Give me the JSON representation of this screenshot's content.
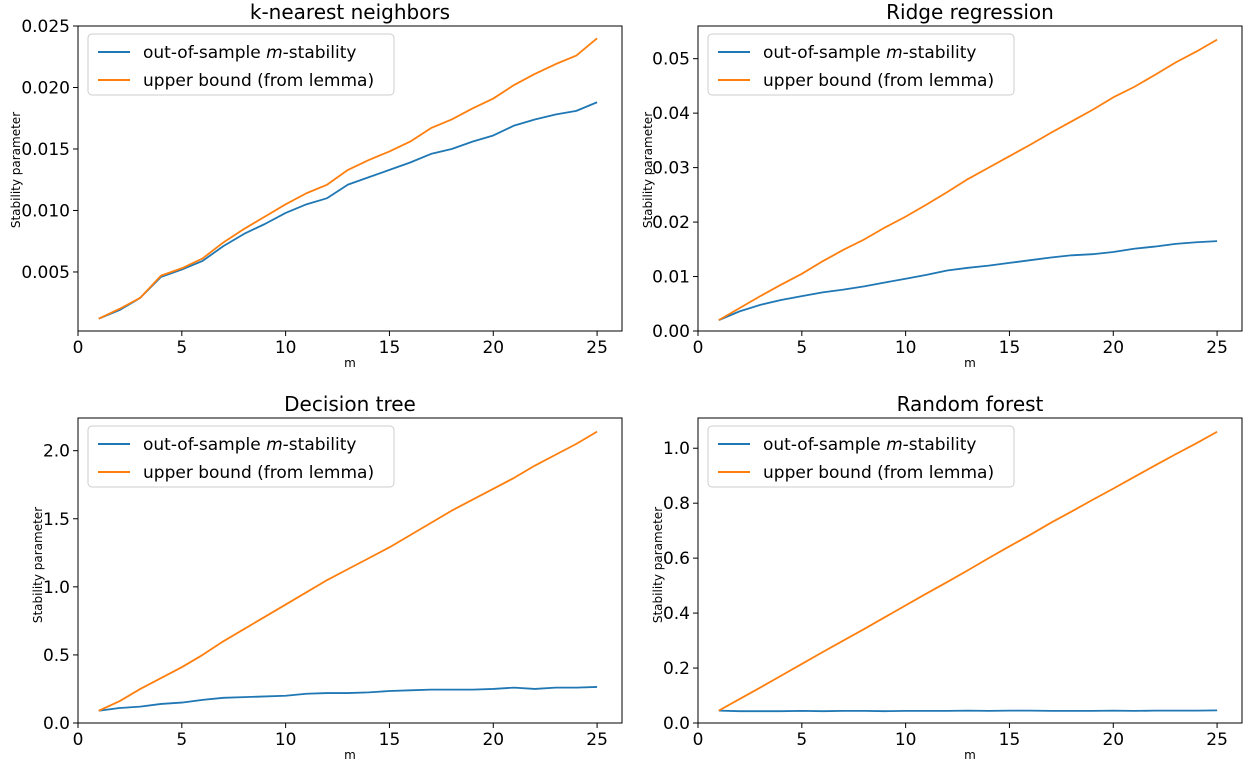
{
  "chart_data": [
    {
      "type": "line",
      "title": "k-nearest neighbors",
      "xlabel": "m",
      "ylabel": "Stability parameter",
      "xlim": [
        0,
        26.2
      ],
      "ylim": [
        0.0002,
        0.025
      ],
      "xticks": [
        0,
        5,
        10,
        15,
        20,
        25
      ],
      "yticks": [
        0.005,
        0.01,
        0.015,
        0.02,
        0.025
      ],
      "ytick_labels": [
        "0.005",
        "0.010",
        "0.015",
        "0.020",
        "0.025"
      ],
      "legend": "upper-left",
      "x": [
        1,
        2,
        3,
        4,
        5,
        6,
        7,
        8,
        9,
        10,
        11,
        12,
        13,
        14,
        15,
        16,
        17,
        18,
        19,
        20,
        21,
        22,
        23,
        24,
        25
      ],
      "series": [
        {
          "name": "out-of-sample m-stability",
          "color": "#1f77b4",
          "values": [
            0.0012,
            0.0019,
            0.0029,
            0.0046,
            0.0052,
            0.0059,
            0.0071,
            0.0081,
            0.0089,
            0.0098,
            0.0105,
            0.011,
            0.0121,
            0.0127,
            0.0133,
            0.0139,
            0.0146,
            0.015,
            0.0156,
            0.0161,
            0.0169,
            0.0174,
            0.0178,
            0.0181,
            0.0188
          ]
        },
        {
          "name": "upper bound (from lemma)",
          "color": "#ff7f0e",
          "values": [
            0.0012,
            0.002,
            0.0029,
            0.0047,
            0.0053,
            0.0061,
            0.0074,
            0.0085,
            0.0095,
            0.0105,
            0.0114,
            0.0121,
            0.0133,
            0.0141,
            0.0148,
            0.0156,
            0.0167,
            0.0174,
            0.0183,
            0.0191,
            0.0202,
            0.0211,
            0.0219,
            0.0226,
            0.024
          ]
        }
      ]
    },
    {
      "type": "line",
      "title": "Ridge regression",
      "xlabel": "m",
      "ylabel": "Stability parameter",
      "xlim": [
        0,
        26.2
      ],
      "ylim": [
        0,
        0.056
      ],
      "xticks": [
        0,
        5,
        10,
        15,
        20,
        25
      ],
      "yticks": [
        0,
        0.01,
        0.02,
        0.03,
        0.04,
        0.05
      ],
      "ytick_labels": [
        "0.00",
        "0.01",
        "0.02",
        "0.03",
        "0.04",
        "0.05"
      ],
      "legend": "upper-left",
      "x": [
        1,
        2,
        3,
        4,
        5,
        6,
        7,
        8,
        9,
        10,
        11,
        12,
        13,
        14,
        15,
        16,
        17,
        18,
        19,
        20,
        21,
        22,
        23,
        24,
        25
      ],
      "series": [
        {
          "name": "out-of-sample m-stability",
          "color": "#1f77b4",
          "values": [
            0.002,
            0.0036,
            0.0048,
            0.0057,
            0.0064,
            0.0071,
            0.0076,
            0.0082,
            0.0089,
            0.0096,
            0.0103,
            0.0111,
            0.0116,
            0.012,
            0.0125,
            0.013,
            0.0135,
            0.0139,
            0.0141,
            0.0145,
            0.0151,
            0.0155,
            0.016,
            0.0163,
            0.0165
          ]
        },
        {
          "name": "upper bound (from lemma)",
          "color": "#ff7f0e",
          "values": [
            0.002,
            0.0042,
            0.0064,
            0.0085,
            0.0105,
            0.0128,
            0.0149,
            0.0168,
            0.019,
            0.021,
            0.0232,
            0.0255,
            0.0279,
            0.03,
            0.0321,
            0.0342,
            0.0364,
            0.0385,
            0.0406,
            0.0429,
            0.0448,
            0.047,
            0.0493,
            0.0513,
            0.0535
          ]
        }
      ]
    },
    {
      "type": "line",
      "title": "Decision tree",
      "xlabel": "m",
      "ylabel": "Stability parameter",
      "xlim": [
        0,
        26.2
      ],
      "ylim": [
        0,
        2.24
      ],
      "xticks": [
        0,
        5,
        10,
        15,
        20,
        25
      ],
      "yticks": [
        0,
        0.5,
        1.0,
        1.5,
        2.0
      ],
      "ytick_labels": [
        "0.0",
        "0.5",
        "1.0",
        "1.5",
        "2.0"
      ],
      "legend": "upper-left",
      "x": [
        1,
        2,
        3,
        4,
        5,
        6,
        7,
        8,
        9,
        10,
        11,
        12,
        13,
        14,
        15,
        16,
        17,
        18,
        19,
        20,
        21,
        22,
        23,
        24,
        25
      ],
      "series": [
        {
          "name": "out-of-sample m-stability",
          "color": "#1f77b4",
          "values": [
            0.09,
            0.11,
            0.12,
            0.14,
            0.15,
            0.17,
            0.185,
            0.19,
            0.195,
            0.2,
            0.215,
            0.22,
            0.22,
            0.225,
            0.235,
            0.24,
            0.245,
            0.245,
            0.245,
            0.25,
            0.26,
            0.25,
            0.26,
            0.26,
            0.265
          ]
        },
        {
          "name": "upper bound (from lemma)",
          "color": "#ff7f0e",
          "values": [
            0.09,
            0.16,
            0.25,
            0.33,
            0.41,
            0.5,
            0.6,
            0.69,
            0.78,
            0.87,
            0.96,
            1.05,
            1.13,
            1.21,
            1.29,
            1.38,
            1.47,
            1.56,
            1.64,
            1.72,
            1.8,
            1.89,
            1.97,
            2.05,
            2.14
          ]
        }
      ]
    },
    {
      "type": "line",
      "title": "Random forest",
      "xlabel": "m",
      "ylabel": "Stability parameter",
      "xlim": [
        0,
        26.2
      ],
      "ylim": [
        0,
        1.11
      ],
      "xticks": [
        0,
        5,
        10,
        15,
        20,
        25
      ],
      "yticks": [
        0,
        0.2,
        0.4,
        0.6,
        0.8,
        1.0
      ],
      "ytick_labels": [
        "0.0",
        "0.2",
        "0.4",
        "0.6",
        "0.8",
        "1.0"
      ],
      "legend": "upper-left",
      "x": [
        1,
        2,
        3,
        4,
        5,
        6,
        7,
        8,
        9,
        10,
        11,
        12,
        13,
        14,
        15,
        16,
        17,
        18,
        19,
        20,
        21,
        22,
        23,
        24,
        25
      ],
      "series": [
        {
          "name": "out-of-sample m-stability",
          "color": "#1f77b4",
          "values": [
            0.045,
            0.043,
            0.043,
            0.043,
            0.044,
            0.043,
            0.044,
            0.044,
            0.043,
            0.044,
            0.044,
            0.044,
            0.045,
            0.044,
            0.045,
            0.045,
            0.044,
            0.044,
            0.044,
            0.045,
            0.044,
            0.045,
            0.045,
            0.045,
            0.046
          ]
        },
        {
          "name": "upper bound (from lemma)",
          "color": "#ff7f0e",
          "values": [
            0.045,
            0.087,
            0.129,
            0.172,
            0.215,
            0.258,
            0.3,
            0.342,
            0.385,
            0.428,
            0.471,
            0.513,
            0.556,
            0.6,
            0.643,
            0.685,
            0.729,
            0.77,
            0.812,
            0.853,
            0.895,
            0.937,
            0.978,
            1.018,
            1.06
          ]
        }
      ]
    }
  ]
}
